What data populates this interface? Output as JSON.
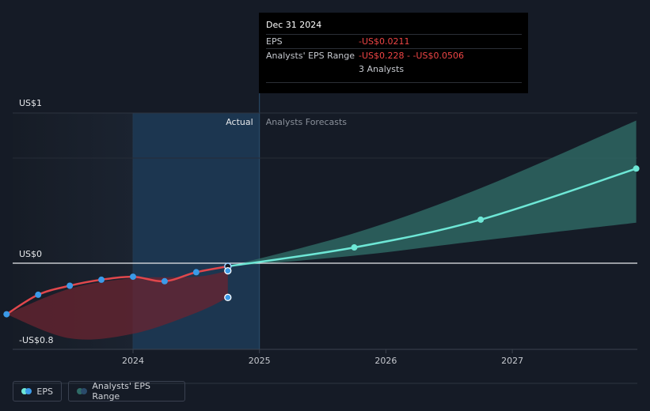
{
  "tooltip": {
    "date": "Dec 31 2024",
    "eps_label": "EPS",
    "eps_value": "-US$0.0211",
    "range_label": "Analysts' EPS Range",
    "range_value": "-US$0.228 - -US$0.0506",
    "analysts": "3 Analysts"
  },
  "labels": {
    "actual": "Actual",
    "forecast": "Analysts Forecasts"
  },
  "legend": {
    "eps": "EPS",
    "range": "Analysts' EPS Range"
  },
  "colors": {
    "background": "#151b26",
    "actual_line": "#e0474c",
    "forecast_line": "#6ee7d6",
    "forecast_band": "#2f6b66",
    "actual_band": "#6a2430",
    "point": "#3b9ae8",
    "highlight": "#1d3a55"
  },
  "chart_data": {
    "type": "line",
    "ylim": [
      -0.8,
      1
    ],
    "y_ticks": [
      {
        "value": 1,
        "label": "US$1"
      },
      {
        "value": 0,
        "label": "US$0"
      },
      {
        "value": -0.8,
        "label": "-US$0.8"
      }
    ],
    "x_ticks": [
      {
        "value": 2024,
        "label": "2024"
      },
      {
        "value": 2025,
        "label": "2025"
      },
      {
        "value": 2026,
        "label": "2026"
      },
      {
        "value": 2027,
        "label": "2027"
      }
    ],
    "xlim": [
      2022.75,
      2027.98
    ],
    "actual_end": 2025.0,
    "series": [
      {
        "name": "EPS",
        "role": "actual",
        "points": [
          [
            2023.0,
            -0.34
          ],
          [
            2023.25,
            -0.21
          ],
          [
            2023.5,
            -0.15
          ],
          [
            2023.75,
            -0.11
          ],
          [
            2024.0,
            -0.09
          ],
          [
            2024.25,
            -0.12
          ],
          [
            2024.5,
            -0.06
          ],
          [
            2024.75,
            -0.0211
          ]
        ]
      },
      {
        "name": "EPS",
        "role": "forecast",
        "points": [
          [
            2024.75,
            -0.0211
          ],
          [
            2025.75,
            0.105
          ],
          [
            2026.75,
            0.29
          ],
          [
            2027.98,
            0.63
          ]
        ]
      }
    ],
    "ranges": [
      {
        "name": "Analysts' EPS Range",
        "role": "actual",
        "upper": [
          [
            2023.0,
            -0.34
          ],
          [
            2023.5,
            -0.17
          ],
          [
            2024.0,
            -0.1
          ],
          [
            2024.5,
            -0.09
          ],
          [
            2024.75,
            -0.0506
          ]
        ],
        "lower": [
          [
            2023.0,
            -0.34
          ],
          [
            2023.5,
            -0.5
          ],
          [
            2024.0,
            -0.47
          ],
          [
            2024.5,
            -0.33
          ],
          [
            2024.75,
            -0.228
          ]
        ]
      },
      {
        "name": "Analysts' EPS Range",
        "role": "forecast",
        "upper": [
          [
            2024.75,
            -0.0211
          ],
          [
            2025.75,
            0.2
          ],
          [
            2026.75,
            0.5
          ],
          [
            2027.98,
            0.95
          ]
        ],
        "lower": [
          [
            2024.75,
            -0.0211
          ],
          [
            2025.75,
            0.05
          ],
          [
            2026.75,
            0.15
          ],
          [
            2027.98,
            0.27
          ]
        ]
      }
    ],
    "markers": [
      {
        "x": 2025.75,
        "y": 0.105
      },
      {
        "x": 2026.75,
        "y": 0.29
      }
    ],
    "extra_points": [
      {
        "x": 2024.75,
        "y": -0.0506
      },
      {
        "x": 2024.75,
        "y": -0.228
      }
    ],
    "end_marker": {
      "x": 2027.98,
      "y": 0.63
    }
  }
}
